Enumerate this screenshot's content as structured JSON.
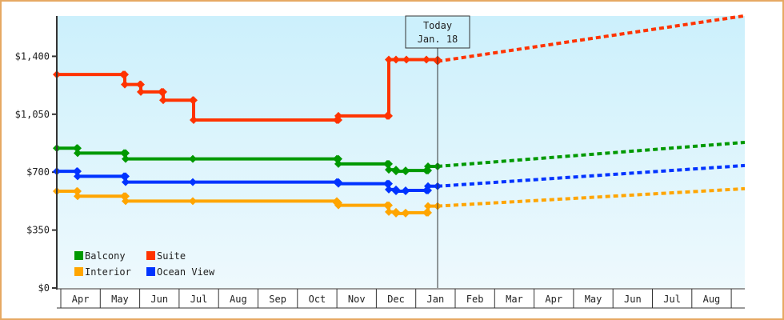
{
  "chart_data": {
    "type": "line",
    "title": "",
    "xlabel": "",
    "ylabel": "",
    "ylim": [
      0,
      1650
    ],
    "yticks": [
      {
        "label": "$0",
        "value": 0
      },
      {
        "label": "$350",
        "value": 350
      },
      {
        "label": "$700",
        "value": 700
      },
      {
        "label": "$1,050",
        "value": 1050
      },
      {
        "label": "$1,400",
        "value": 1400
      }
    ],
    "months": [
      "Apr",
      "May",
      "Jun",
      "Jul",
      "Aug",
      "Sep",
      "Oct",
      "Nov",
      "Dec",
      "Jan",
      "Feb",
      "Mar",
      "Apr",
      "May",
      "Jun",
      "Jul",
      "Aug"
    ],
    "today_marker": {
      "line1": "Today",
      "line2": "Jan. 18"
    },
    "legend": [
      {
        "name": "Balcony",
        "color": "#009900"
      },
      {
        "name": "Suite",
        "color": "#ff3300"
      },
      {
        "name": "Interior",
        "color": "#ffa500"
      },
      {
        "name": "Ocean View",
        "color": "#0033ff"
      }
    ],
    "series": [
      {
        "name": "Suite",
        "color": "#ff3300",
        "history": [
          [
            71,
            1290
          ],
          [
            154,
            1290
          ],
          [
            156,
            1230
          ],
          [
            175,
            1230
          ],
          [
            176,
            1185
          ],
          [
            202,
            1185
          ],
          [
            204,
            1135
          ],
          [
            241,
            1135
          ],
          [
            242,
            1015
          ],
          [
            421,
            1015
          ],
          [
            423,
            1040
          ],
          [
            484,
            1040
          ],
          [
            486,
            1380
          ],
          [
            495,
            1380
          ],
          [
            508,
            1380
          ],
          [
            533,
            1380
          ],
          [
            547,
            1370
          ]
        ],
        "forecast": [
          [
            547,
            1370
          ],
          [
            931,
            1645
          ]
        ]
      },
      {
        "name": "Balcony",
        "color": "#009900",
        "history": [
          [
            71,
            845
          ],
          [
            96,
            845
          ],
          [
            97,
            815
          ],
          [
            155,
            815
          ],
          [
            157,
            780
          ],
          [
            241,
            780
          ],
          [
            421,
            780
          ],
          [
            423,
            750
          ],
          [
            484,
            750
          ],
          [
            486,
            715
          ],
          [
            495,
            705
          ],
          [
            507,
            710
          ],
          [
            533,
            710
          ],
          [
            535,
            735
          ],
          [
            547,
            735
          ]
        ],
        "forecast": [
          [
            547,
            735
          ],
          [
            931,
            880
          ]
        ]
      },
      {
        "name": "Ocean View",
        "color": "#0033ff",
        "history": [
          [
            71,
            705
          ],
          [
            96,
            705
          ],
          [
            97,
            675
          ],
          [
            155,
            675
          ],
          [
            157,
            640
          ],
          [
            241,
            640
          ],
          [
            421,
            640
          ],
          [
            423,
            630
          ],
          [
            484,
            630
          ],
          [
            486,
            595
          ],
          [
            495,
            585
          ],
          [
            507,
            590
          ],
          [
            533,
            590
          ],
          [
            535,
            615
          ],
          [
            547,
            615
          ]
        ],
        "forecast": [
          [
            547,
            615
          ],
          [
            931,
            740
          ]
        ]
      },
      {
        "name": "Interior",
        "color": "#ffa500",
        "history": [
          [
            71,
            585
          ],
          [
            96,
            585
          ],
          [
            97,
            555
          ],
          [
            155,
            555
          ],
          [
            157,
            525
          ],
          [
            241,
            525
          ],
          [
            421,
            515
          ],
          [
            423,
            500
          ],
          [
            484,
            500
          ],
          [
            486,
            460
          ],
          [
            495,
            450
          ],
          [
            507,
            455
          ],
          [
            533,
            455
          ],
          [
            535,
            495
          ],
          [
            547,
            495
          ]
        ],
        "forecast": [
          [
            547,
            495
          ],
          [
            931,
            600
          ]
        ]
      }
    ]
  }
}
